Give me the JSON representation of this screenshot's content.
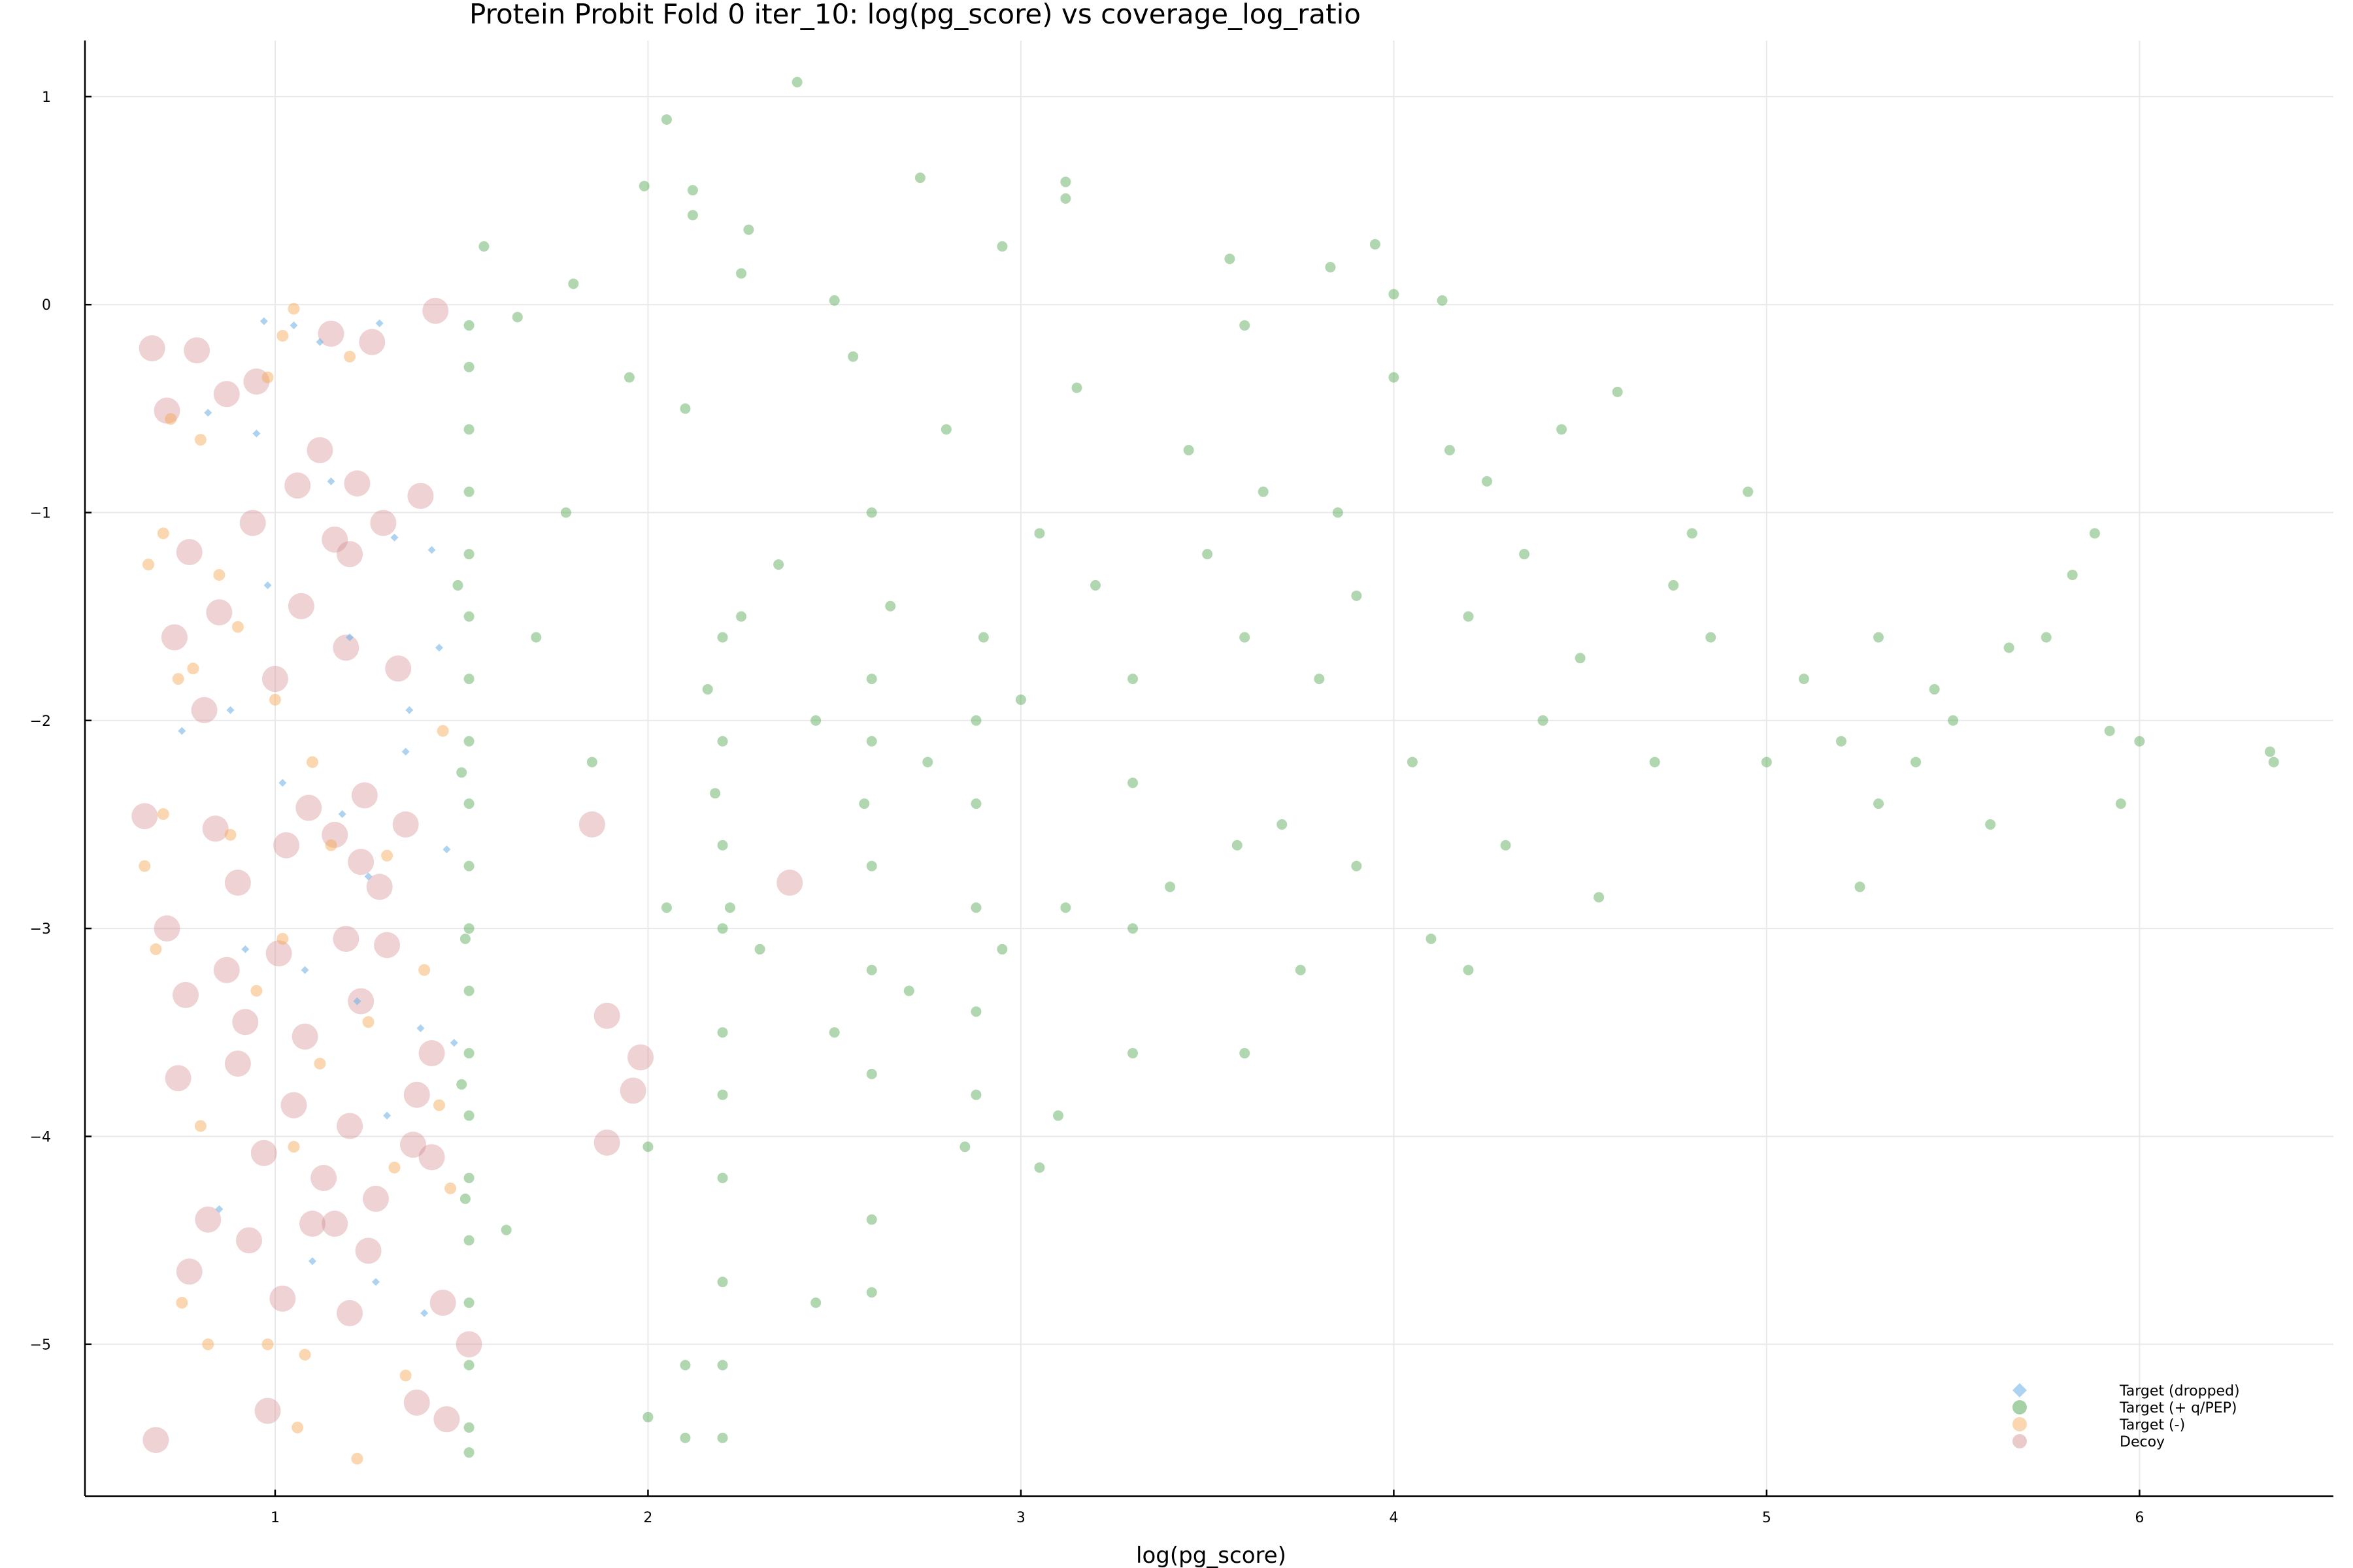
{
  "chart_data": {
    "type": "scatter",
    "title": "Protein Probit Fold 0 iter_10: log(pg_score) vs coverage_log_ratio",
    "xlabel": "log(pg_score)",
    "ylabel": "",
    "xlim": [
      0.49,
      6.52
    ],
    "ylim": [
      -5.73,
      1.27
    ],
    "x_ticks": [
      1,
      2,
      3,
      4,
      5,
      6
    ],
    "y_ticks": [
      1,
      0,
      -1,
      -2,
      -3,
      -4,
      -5
    ],
    "grid": true,
    "legend_position": "bottom-right",
    "series": [
      {
        "name": "Target (dropped)",
        "color": "#6aaee6",
        "marker": "diamond",
        "points": [
          [
            0.97,
            -0.08
          ],
          [
            1.05,
            -0.1
          ],
          [
            1.12,
            -0.18
          ],
          [
            1.28,
            -0.09
          ],
          [
            0.82,
            -0.52
          ],
          [
            0.95,
            -0.62
          ],
          [
            1.15,
            -0.85
          ],
          [
            1.32,
            -1.12
          ],
          [
            1.42,
            -1.18
          ],
          [
            0.75,
            -2.05
          ],
          [
            0.88,
            -1.95
          ],
          [
            1.02,
            -2.3
          ],
          [
            1.18,
            -2.45
          ],
          [
            1.35,
            -2.15
          ],
          [
            1.46,
            -2.62
          ],
          [
            1.25,
            -2.75
          ],
          [
            0.92,
            -3.1
          ],
          [
            1.08,
            -3.2
          ],
          [
            1.22,
            -3.35
          ],
          [
            1.39,
            -3.48
          ],
          [
            1.48,
            -3.55
          ],
          [
            1.3,
            -3.9
          ],
          [
            0.85,
            -4.35
          ],
          [
            1.1,
            -4.6
          ],
          [
            1.27,
            -4.7
          ],
          [
            1.4,
            -4.85
          ],
          [
            1.44,
            -1.65
          ],
          [
            1.36,
            -1.95
          ],
          [
            1.2,
            -1.6
          ],
          [
            0.98,
            -1.35
          ]
        ]
      },
      {
        "name": "Target (+ q/PEP)",
        "color": "#3a9a3a",
        "marker": "circle",
        "points": [
          [
            2.4,
            1.07
          ],
          [
            2.05,
            0.89
          ],
          [
            1.99,
            0.57
          ],
          [
            2.12,
            0.55
          ],
          [
            2.73,
            0.61
          ],
          [
            3.12,
            0.59
          ],
          [
            3.12,
            0.51
          ],
          [
            2.27,
            0.36
          ],
          [
            2.12,
            0.43
          ],
          [
            3.95,
            0.29
          ],
          [
            2.95,
            0.28
          ],
          [
            1.56,
            0.28
          ],
          [
            1.8,
            0.1
          ],
          [
            2.25,
            0.15
          ],
          [
            3.56,
            0.22
          ],
          [
            4.0,
            0.05
          ],
          [
            4.13,
            0.02
          ],
          [
            3.83,
            0.18
          ],
          [
            3.6,
            -0.1
          ],
          [
            2.5,
            0.02
          ],
          [
            1.65,
            -0.06
          ],
          [
            1.52,
            -0.1
          ],
          [
            1.52,
            -0.3
          ],
          [
            1.52,
            -0.6
          ],
          [
            1.52,
            -0.9
          ],
          [
            1.52,
            -1.2
          ],
          [
            1.52,
            -1.5
          ],
          [
            1.52,
            -1.8
          ],
          [
            1.52,
            -2.1
          ],
          [
            1.52,
            -2.4
          ],
          [
            1.52,
            -2.7
          ],
          [
            1.52,
            -3.0
          ],
          [
            1.52,
            -3.3
          ],
          [
            1.52,
            -3.6
          ],
          [
            1.52,
            -3.9
          ],
          [
            1.52,
            -4.2
          ],
          [
            1.52,
            -4.5
          ],
          [
            1.52,
            -4.8
          ],
          [
            1.52,
            -5.1
          ],
          [
            1.52,
            -5.4
          ],
          [
            1.52,
            -5.52
          ],
          [
            1.5,
            -2.25
          ],
          [
            1.51,
            -3.05
          ],
          [
            1.5,
            -3.75
          ],
          [
            1.51,
            -4.3
          ],
          [
            1.49,
            -1.35
          ],
          [
            1.62,
            -4.45
          ],
          [
            2.2,
            -1.6
          ],
          [
            2.2,
            -2.1
          ],
          [
            2.2,
            -2.6
          ],
          [
            2.2,
            -3.0
          ],
          [
            2.2,
            -3.5
          ],
          [
            2.2,
            -3.8
          ],
          [
            2.2,
            -4.2
          ],
          [
            2.2,
            -4.7
          ],
          [
            2.2,
            -5.1
          ],
          [
            2.2,
            -5.45
          ],
          [
            2.18,
            -2.35
          ],
          [
            2.16,
            -1.85
          ],
          [
            2.22,
            -2.9
          ],
          [
            2.6,
            -1.8
          ],
          [
            2.6,
            -2.1
          ],
          [
            2.6,
            -2.7
          ],
          [
            2.6,
            -3.2
          ],
          [
            2.6,
            -3.7
          ],
          [
            2.6,
            -4.4
          ],
          [
            2.6,
            -4.75
          ],
          [
            2.58,
            -2.4
          ],
          [
            2.0,
            -4.05
          ],
          [
            2.1,
            -5.1
          ],
          [
            2.0,
            -5.35
          ],
          [
            2.1,
            -5.45
          ],
          [
            2.45,
            -4.8
          ],
          [
            2.88,
            -2.0
          ],
          [
            2.88,
            -2.4
          ],
          [
            2.88,
            -2.9
          ],
          [
            2.88,
            -3.4
          ],
          [
            2.88,
            -3.8
          ],
          [
            2.85,
            -4.05
          ],
          [
            3.1,
            -3.9
          ],
          [
            3.12,
            -2.9
          ],
          [
            3.05,
            -4.15
          ],
          [
            3.3,
            -3.6
          ],
          [
            3.3,
            -3.0
          ],
          [
            3.3,
            -2.3
          ],
          [
            3.6,
            -3.6
          ],
          [
            3.58,
            -2.6
          ],
          [
            3.75,
            -3.2
          ],
          [
            3.9,
            -2.7
          ],
          [
            4.1,
            -3.05
          ],
          [
            4.2,
            -3.2
          ],
          [
            4.3,
            -2.6
          ],
          [
            4.55,
            -2.85
          ],
          [
            5.2,
            -2.1
          ],
          [
            5.3,
            -2.4
          ],
          [
            5.4,
            -2.2
          ],
          [
            5.5,
            -2.0
          ],
          [
            5.6,
            -2.5
          ],
          [
            5.65,
            -1.65
          ],
          [
            5.75,
            -1.6
          ],
          [
            5.82,
            -1.3
          ],
          [
            5.88,
            -1.1
          ],
          [
            5.92,
            -2.05
          ],
          [
            5.95,
            -2.4
          ],
          [
            6.0,
            -2.1
          ],
          [
            6.35,
            -2.15
          ],
          [
            6.36,
            -2.2
          ],
          [
            5.25,
            -2.8
          ],
          [
            4.95,
            -0.9
          ],
          [
            4.8,
            -1.1
          ],
          [
            4.6,
            -0.42
          ],
          [
            4.45,
            -0.6
          ],
          [
            4.15,
            -0.7
          ],
          [
            3.85,
            -1.0
          ],
          [
            3.5,
            -1.2
          ],
          [
            3.2,
            -1.35
          ],
          [
            2.9,
            -1.6
          ],
          [
            2.6,
            -1.0
          ],
          [
            2.35,
            -1.25
          ],
          [
            2.1,
            -0.5
          ],
          [
            1.95,
            -0.35
          ],
          [
            1.78,
            -1.0
          ],
          [
            1.7,
            -1.6
          ],
          [
            1.85,
            -2.2
          ],
          [
            2.05,
            -2.9
          ],
          [
            2.3,
            -3.1
          ],
          [
            2.5,
            -3.5
          ],
          [
            2.7,
            -3.3
          ],
          [
            2.95,
            -3.1
          ],
          [
            3.4,
            -2.8
          ],
          [
            3.7,
            -2.5
          ],
          [
            4.05,
            -2.2
          ],
          [
            4.4,
            -2.0
          ],
          [
            4.7,
            -2.2
          ],
          [
            5.0,
            -2.2
          ],
          [
            5.1,
            -1.8
          ],
          [
            4.85,
            -1.6
          ],
          [
            4.5,
            -1.7
          ],
          [
            4.2,
            -1.5
          ],
          [
            3.9,
            -1.4
          ],
          [
            3.6,
            -1.6
          ],
          [
            3.3,
            -1.8
          ],
          [
            3.0,
            -1.9
          ],
          [
            2.75,
            -2.2
          ],
          [
            2.45,
            -2.0
          ],
          [
            2.25,
            -1.5
          ],
          [
            3.8,
            -1.8
          ],
          [
            4.35,
            -1.2
          ],
          [
            3.45,
            -0.7
          ],
          [
            3.15,
            -0.4
          ],
          [
            2.8,
            -0.6
          ],
          [
            2.55,
            -0.25
          ],
          [
            4.0,
            -0.35
          ],
          [
            4.25,
            -0.85
          ],
          [
            3.65,
            -0.9
          ],
          [
            3.05,
            -1.1
          ],
          [
            2.65,
            -1.45
          ],
          [
            4.75,
            -1.35
          ],
          [
            5.3,
            -1.6
          ],
          [
            5.45,
            -1.85
          ]
        ]
      },
      {
        "name": "Target (-)",
        "color": "#f5a650",
        "marker": "circle",
        "points": [
          [
            1.05,
            -0.02
          ],
          [
            1.02,
            -0.15
          ],
          [
            0.98,
            -0.35
          ],
          [
            1.2,
            -0.25
          ],
          [
            0.72,
            -0.55
          ],
          [
            0.8,
            -0.65
          ],
          [
            0.66,
            -1.25
          ],
          [
            0.7,
            -1.1
          ],
          [
            0.85,
            -1.3
          ],
          [
            0.9,
            -1.55
          ],
          [
            0.74,
            -1.8
          ],
          [
            0.78,
            -1.75
          ],
          [
            1.0,
            -1.9
          ],
          [
            1.1,
            -2.2
          ],
          [
            0.7,
            -2.45
          ],
          [
            0.65,
            -2.7
          ],
          [
            0.88,
            -2.55
          ],
          [
            1.15,
            -2.6
          ],
          [
            1.3,
            -2.65
          ],
          [
            1.02,
            -3.05
          ],
          [
            0.68,
            -3.1
          ],
          [
            0.95,
            -3.3
          ],
          [
            1.25,
            -3.45
          ],
          [
            1.4,
            -3.2
          ],
          [
            1.12,
            -3.65
          ],
          [
            0.8,
            -3.95
          ],
          [
            1.05,
            -4.05
          ],
          [
            1.32,
            -4.15
          ],
          [
            0.75,
            -4.8
          ],
          [
            0.82,
            -5.0
          ],
          [
            1.08,
            -5.05
          ],
          [
            0.98,
            -5.0
          ],
          [
            1.35,
            -5.15
          ],
          [
            1.22,
            -5.55
          ],
          [
            1.06,
            -5.4
          ],
          [
            1.44,
            -3.85
          ],
          [
            1.47,
            -4.25
          ],
          [
            1.45,
            -2.05
          ]
        ]
      },
      {
        "name": "Decoy",
        "color": "#d28a8f",
        "marker": "circle",
        "points": [
          [
            0.67,
            -0.21
          ],
          [
            0.79,
            -0.22
          ],
          [
            0.71,
            -0.51
          ],
          [
            0.87,
            -0.43
          ],
          [
            0.95,
            -0.37
          ],
          [
            1.15,
            -0.14
          ],
          [
            1.26,
            -0.18
          ],
          [
            1.43,
            -0.03
          ],
          [
            0.77,
            -1.19
          ],
          [
            0.94,
            -1.05
          ],
          [
            1.06,
            -0.87
          ],
          [
            1.12,
            -0.7
          ],
          [
            0.85,
            -1.48
          ],
          [
            1.07,
            -1.45
          ],
          [
            1.2,
            -1.2
          ],
          [
            1.29,
            -1.05
          ],
          [
            1.39,
            -0.92
          ],
          [
            0.73,
            -1.6
          ],
          [
            0.81,
            -1.95
          ],
          [
            1.0,
            -1.8
          ],
          [
            1.19,
            -1.65
          ],
          [
            1.33,
            -1.75
          ],
          [
            0.65,
            -2.46
          ],
          [
            0.84,
            -2.52
          ],
          [
            1.09,
            -2.42
          ],
          [
            1.24,
            -2.36
          ],
          [
            0.9,
            -2.78
          ],
          [
            1.03,
            -2.6
          ],
          [
            1.16,
            -2.55
          ],
          [
            1.35,
            -2.5
          ],
          [
            0.71,
            -3.0
          ],
          [
            0.87,
            -3.2
          ],
          [
            1.01,
            -3.12
          ],
          [
            1.19,
            -3.05
          ],
          [
            1.28,
            -2.8
          ],
          [
            0.76,
            -3.32
          ],
          [
            0.92,
            -3.45
          ],
          [
            1.08,
            -3.52
          ],
          [
            1.23,
            -3.35
          ],
          [
            1.42,
            -3.6
          ],
          [
            0.74,
            -3.72
          ],
          [
            0.9,
            -3.65
          ],
          [
            1.05,
            -3.85
          ],
          [
            1.2,
            -3.95
          ],
          [
            1.38,
            -3.8
          ],
          [
            0.97,
            -4.08
          ],
          [
            1.13,
            -4.2
          ],
          [
            1.27,
            -4.3
          ],
          [
            1.42,
            -4.1
          ],
          [
            0.82,
            -4.4
          ],
          [
            0.93,
            -4.5
          ],
          [
            1.1,
            -4.42
          ],
          [
            1.25,
            -4.55
          ],
          [
            0.77,
            -4.65
          ],
          [
            1.02,
            -4.78
          ],
          [
            1.2,
            -4.85
          ],
          [
            1.45,
            -4.8
          ],
          [
            1.38,
            -5.28
          ],
          [
            1.46,
            -5.36
          ],
          [
            0.98,
            -5.32
          ],
          [
            0.68,
            -5.46
          ],
          [
            1.52,
            -5.0
          ],
          [
            1.85,
            -2.5
          ],
          [
            1.89,
            -3.42
          ],
          [
            1.98,
            -3.62
          ],
          [
            1.96,
            -3.78
          ],
          [
            1.89,
            -4.03
          ],
          [
            2.38,
            -2.78
          ],
          [
            1.16,
            -1.13
          ],
          [
            1.23,
            -2.68
          ],
          [
            1.3,
            -3.08
          ],
          [
            1.37,
            -4.04
          ],
          [
            1.16,
            -4.42
          ],
          [
            1.22,
            -0.86
          ]
        ]
      }
    ]
  }
}
